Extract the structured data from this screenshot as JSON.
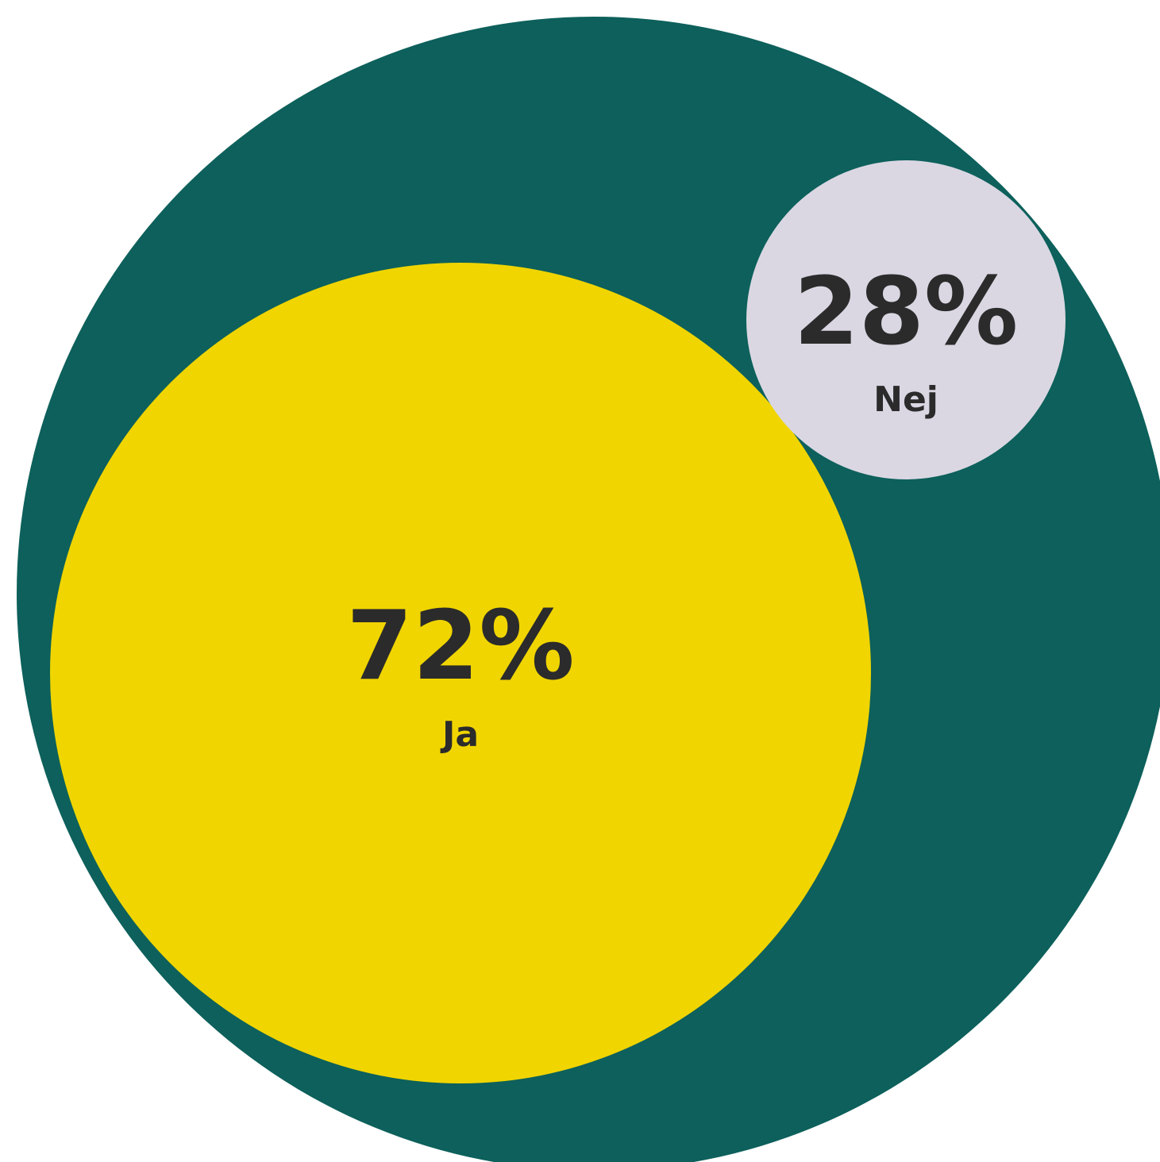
{
  "chart_data": {
    "type": "bubble",
    "title": "",
    "colors": {
      "outer": "#0d605b",
      "Ja": "#f0d500",
      "Nej": "#dad7e3"
    },
    "series": [
      {
        "name": "Ja",
        "value": 72,
        "value_label": "72%"
      },
      {
        "name": "Nej",
        "value": 28,
        "value_label": "28%"
      }
    ]
  }
}
